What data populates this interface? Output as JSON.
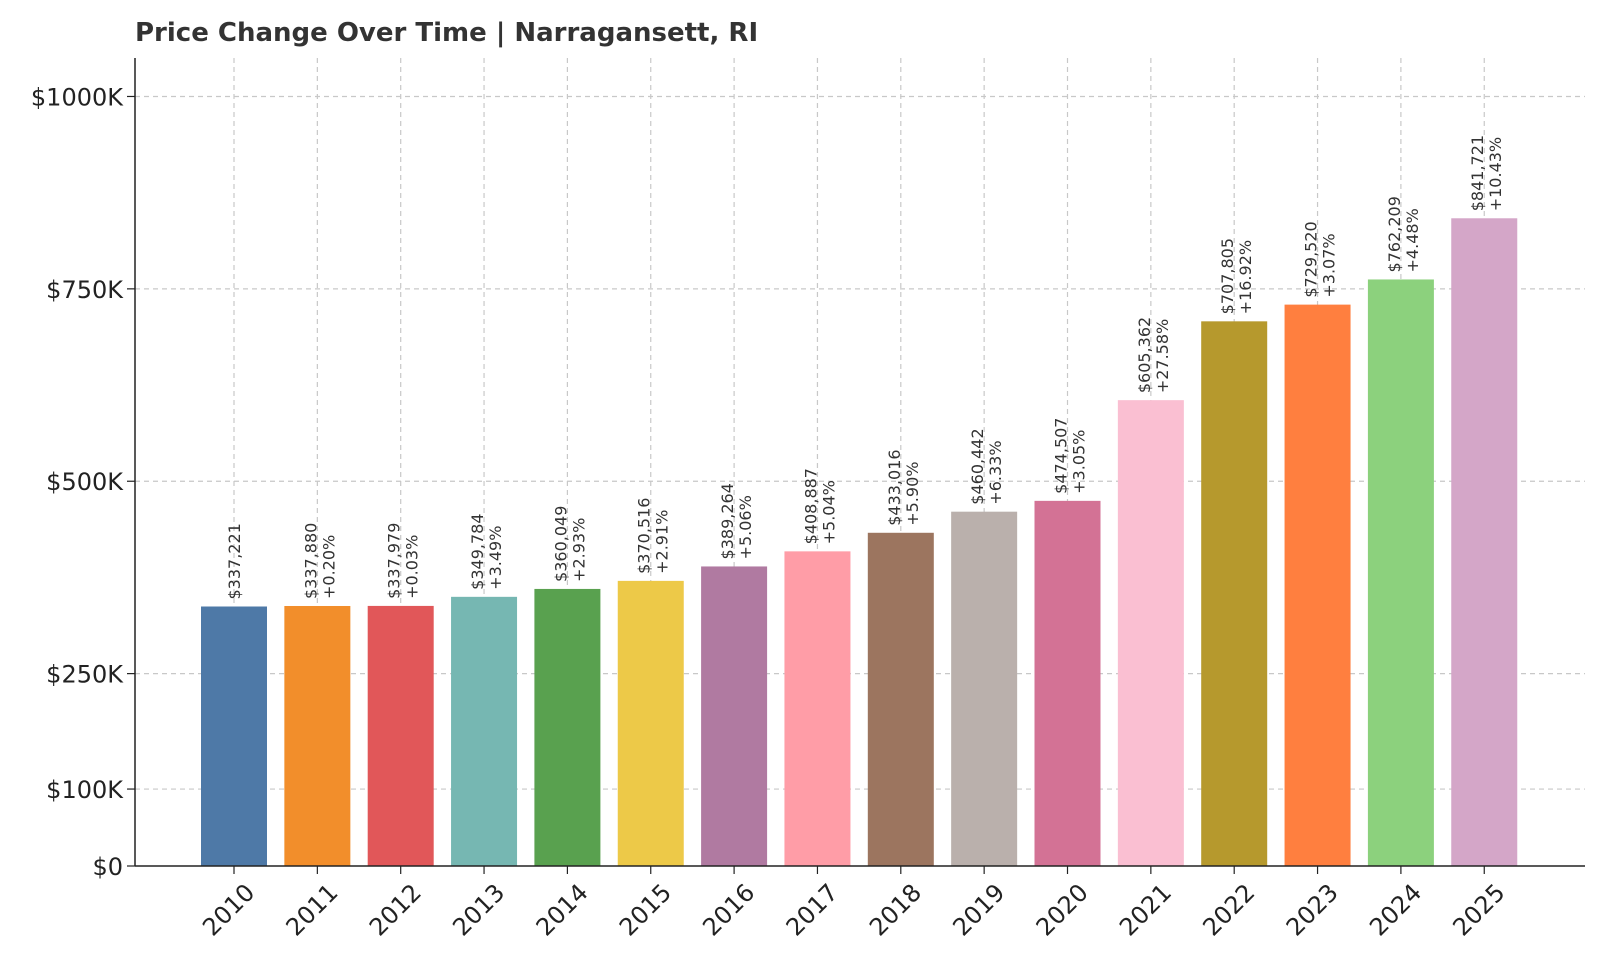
{
  "chart_data": {
    "type": "bar",
    "title": "Price Change Over Time | Narragansett, RI",
    "xlabel": "",
    "ylabel": "",
    "ylim": [
      0,
      1050000
    ],
    "yticks": [
      0,
      100000,
      250000,
      500000,
      750000,
      1000000
    ],
    "ytick_labels": [
      "$0",
      "$100K",
      "$250K",
      "$500K",
      "$750K",
      "$1000K"
    ],
    "grid": true,
    "categories": [
      "2010",
      "2011",
      "2012",
      "2013",
      "2014",
      "2015",
      "2016",
      "2017",
      "2018",
      "2019",
      "2020",
      "2021",
      "2022",
      "2023",
      "2024",
      "2025"
    ],
    "values": [
      337221,
      337880,
      337979,
      349784,
      360049,
      370516,
      389264,
      408887,
      433016,
      460442,
      474507,
      605362,
      707805,
      729520,
      762209,
      841721
    ],
    "value_labels": [
      "$337,221",
      "$337,880",
      "$337,979",
      "$349,784",
      "$360,049",
      "$370,516",
      "$389,264",
      "$408,887",
      "$433,016",
      "$460,442",
      "$474,507",
      "$605,362",
      "$707,805",
      "$729,520",
      "$762,209",
      "$841,721"
    ],
    "change_labels": [
      "",
      "+0.20%",
      "+0.03%",
      "+3.49%",
      "+2.93%",
      "+2.91%",
      "+5.06%",
      "+5.04%",
      "+5.90%",
      "+6.33%",
      "+3.05%",
      "+27.58%",
      "+16.92%",
      "+3.07%",
      "+4.48%",
      "+10.43%"
    ],
    "colors": [
      "#4e79a7",
      "#f28e2b",
      "#e15759",
      "#76b7b2",
      "#59a14f",
      "#edc948",
      "#b07aa1",
      "#ff9da7",
      "#9c755f",
      "#bab0ac",
      "#d37295",
      "#fabfd2",
      "#b6992d",
      "#ff7f3f",
      "#8cd17d",
      "#d4a6c8"
    ]
  }
}
